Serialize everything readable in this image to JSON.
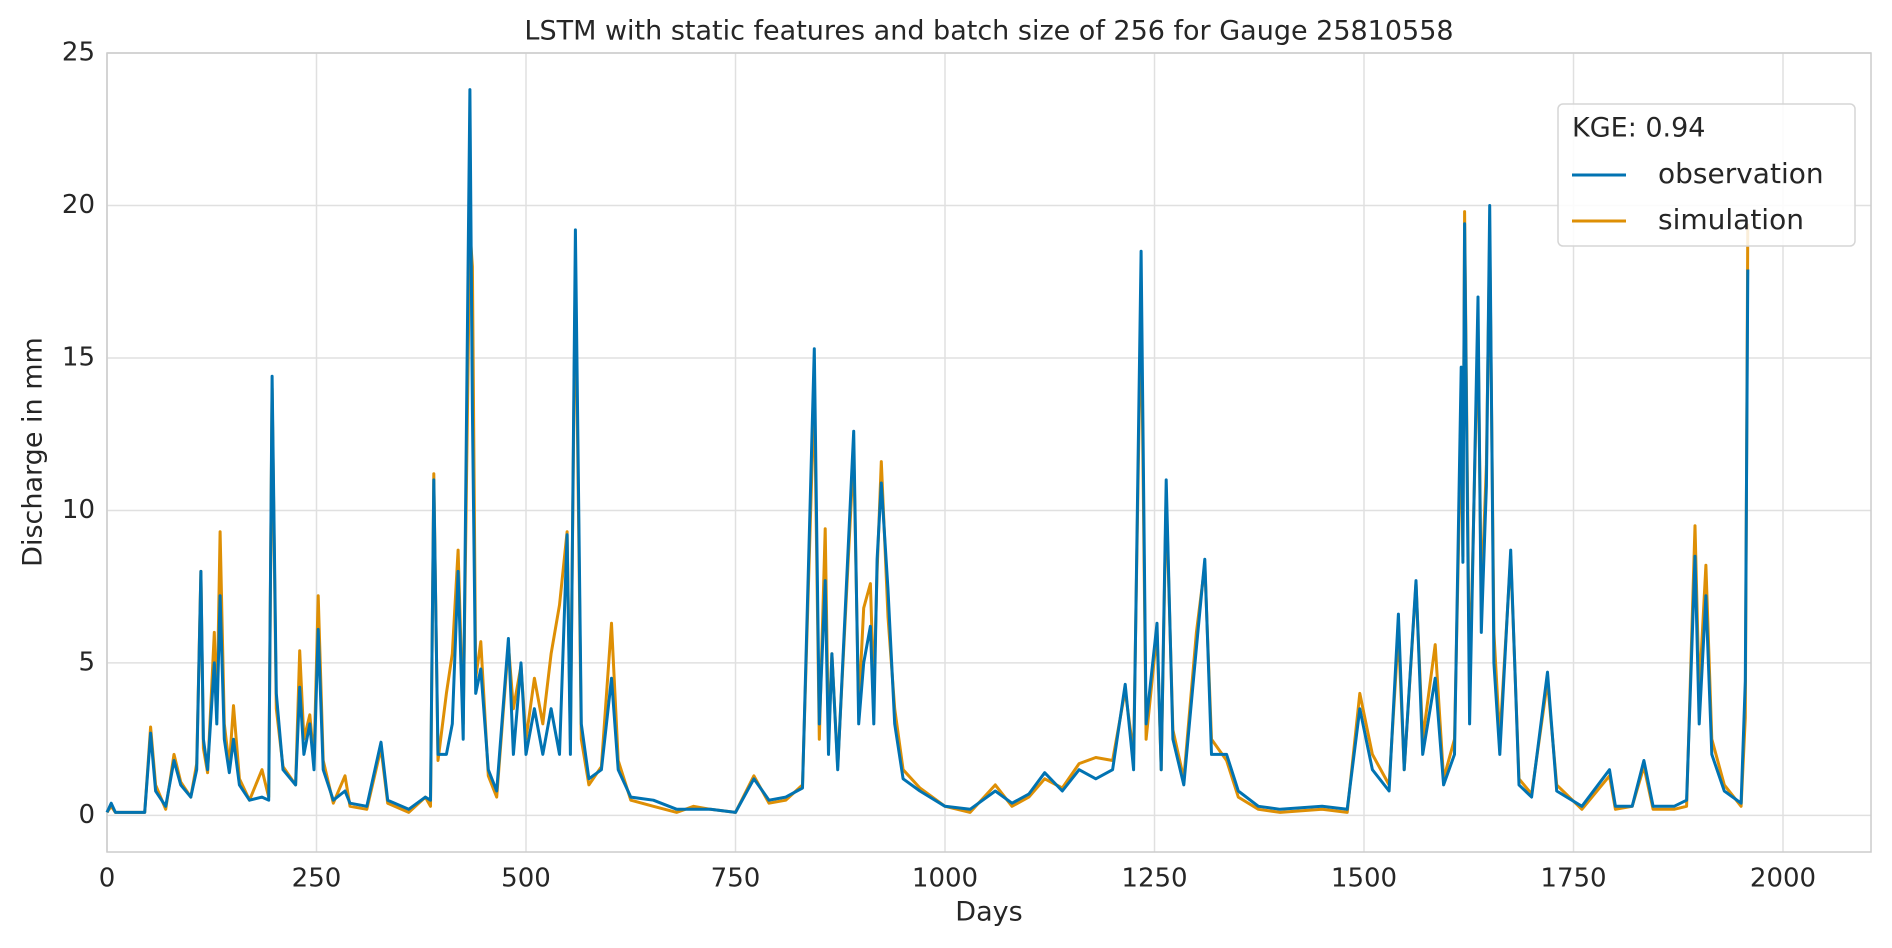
{
  "chart_data": {
    "type": "line",
    "title": "LSTM with static features and batch size of 256 for Gauge 25810558",
    "x_label": "Days",
    "y_label": "Discharge in mm",
    "legend_title": "KGE: 0.94",
    "legend": "upper right",
    "grid": true,
    "xlim": [
      0,
      2105
    ],
    "xticks": [
      0,
      250,
      500,
      750,
      1000,
      1250,
      1500,
      1750,
      2000
    ],
    "ylim": [
      -1.2,
      25
    ],
    "yticks": [
      0,
      5,
      10,
      15,
      20,
      25
    ],
    "x": [
      0,
      5,
      10,
      30,
      45,
      52,
      58,
      70,
      80,
      88,
      100,
      107,
      112,
      115,
      120,
      128,
      131,
      135,
      140,
      146,
      151,
      158,
      170,
      185,
      193,
      197,
      202,
      210,
      225,
      230,
      235,
      242,
      247,
      252,
      258,
      270,
      284,
      290,
      310,
      327,
      335,
      360,
      380,
      386,
      390,
      395,
      405,
      412,
      419,
      425,
      433,
      436,
      440,
      446,
      455,
      465,
      479,
      485,
      494,
      500,
      510,
      520,
      530,
      540,
      549,
      553,
      559,
      566,
      575,
      590,
      602,
      610,
      625,
      652,
      680,
      700,
      720,
      750,
      772,
      790,
      810,
      830,
      844,
      850,
      857,
      861,
      865,
      872,
      891,
      897,
      903,
      911,
      915,
      919,
      924,
      932,
      940,
      950,
      970,
      1000,
      1030,
      1060,
      1080,
      1100,
      1119,
      1140,
      1160,
      1180,
      1200,
      1215,
      1225,
      1234,
      1240,
      1253,
      1258,
      1264,
      1272,
      1285,
      1300,
      1310,
      1318,
      1336,
      1350,
      1374,
      1400,
      1450,
      1480,
      1495,
      1510,
      1530,
      1541,
      1548,
      1562,
      1570,
      1585,
      1595,
      1608,
      1616,
      1618,
      1620,
      1626,
      1636,
      1640,
      1646,
      1650,
      1655,
      1662,
      1675,
      1685,
      1700,
      1719,
      1730,
      1760,
      1793,
      1800,
      1820,
      1834,
      1845,
      1870,
      1885,
      1895,
      1900,
      1908,
      1915,
      1930,
      1950,
      1955,
      1958
    ],
    "series": [
      {
        "name": "observation",
        "color": "#0173b2",
        "values": [
          0.1,
          0.4,
          0.1,
          0.1,
          0.1,
          2.7,
          0.8,
          0.3,
          1.8,
          1.0,
          0.6,
          1.5,
          8.0,
          2.5,
          1.5,
          5.0,
          3.0,
          7.2,
          2.5,
          1.4,
          2.5,
          1.0,
          0.5,
          0.6,
          0.5,
          14.4,
          4.0,
          1.5,
          1.0,
          4.2,
          2.0,
          3.0,
          1.5,
          6.1,
          1.5,
          0.5,
          0.8,
          0.4,
          0.3,
          2.4,
          0.5,
          0.2,
          0.6,
          0.5,
          11.0,
          2.0,
          2.0,
          3.0,
          8.0,
          2.5,
          23.8,
          13.3,
          4.0,
          4.8,
          1.5,
          0.8,
          5.8,
          2.0,
          5.0,
          2.0,
          3.5,
          2.0,
          3.5,
          2.0,
          9.2,
          2.0,
          19.2,
          3.0,
          1.2,
          1.5,
          4.5,
          1.5,
          0.6,
          0.5,
          0.2,
          0.2,
          0.2,
          0.1,
          1.2,
          0.5,
          0.6,
          0.9,
          15.3,
          3.0,
          7.7,
          2.0,
          5.3,
          1.5,
          12.6,
          3.0,
          5.0,
          6.2,
          3.0,
          8.4,
          10.9,
          7.4,
          3.0,
          1.2,
          0.8,
          0.3,
          0.2,
          0.8,
          0.4,
          0.7,
          1.4,
          0.8,
          1.5,
          1.2,
          1.5,
          4.3,
          1.5,
          18.5,
          3.0,
          6.3,
          1.5,
          11.0,
          2.5,
          1.0,
          5.5,
          8.4,
          2.0,
          2.0,
          0.8,
          0.3,
          0.2,
          0.3,
          0.2,
          3.5,
          1.5,
          0.8,
          6.6,
          1.5,
          7.7,
          2.0,
          4.5,
          1.0,
          2.0,
          14.7,
          8.3,
          19.4,
          3.0,
          17.0,
          6.0,
          10.8,
          20.0,
          5.0,
          2.0,
          8.7,
          1.0,
          0.6,
          4.7,
          0.8,
          0.3,
          1.5,
          0.3,
          0.3,
          1.8,
          0.3,
          0.3,
          0.5,
          8.5,
          3.0,
          7.2,
          2.0,
          0.8,
          0.4,
          4.4,
          17.9
        ]
      },
      {
        "name": "simulation",
        "color": "#de8f05",
        "values": [
          0.1,
          0.3,
          0.1,
          0.1,
          0.1,
          2.9,
          1.0,
          0.2,
          2.0,
          1.1,
          0.6,
          1.7,
          8.0,
          2.2,
          1.4,
          6.0,
          3.2,
          9.3,
          3.0,
          1.6,
          3.6,
          1.2,
          0.5,
          1.5,
          0.6,
          14.0,
          3.5,
          1.6,
          1.0,
          5.4,
          2.5,
          3.3,
          1.8,
          7.2,
          1.8,
          0.4,
          1.3,
          0.3,
          0.2,
          2.2,
          0.4,
          0.1,
          0.6,
          0.3,
          11.2,
          1.8,
          4.0,
          5.3,
          8.7,
          3.0,
          19.2,
          18.0,
          4.5,
          5.7,
          1.3,
          0.6,
          5.6,
          3.5,
          4.9,
          2.5,
          4.5,
          3.0,
          5.3,
          6.9,
          9.3,
          2.5,
          18.0,
          2.5,
          1.0,
          1.6,
          6.3,
          1.8,
          0.5,
          0.3,
          0.1,
          0.3,
          0.2,
          0.1,
          1.3,
          0.4,
          0.5,
          1.0,
          14.0,
          2.5,
          9.4,
          2.5,
          5.3,
          1.6,
          11.9,
          3.5,
          6.8,
          7.6,
          4.0,
          8.0,
          11.6,
          6.5,
          3.5,
          1.5,
          0.9,
          0.3,
          0.1,
          1.0,
          0.3,
          0.6,
          1.2,
          0.9,
          1.7,
          1.9,
          1.8,
          4.1,
          2.0,
          17.0,
          2.5,
          6.0,
          1.5,
          10.5,
          2.8,
          1.2,
          6.0,
          8.2,
          2.5,
          1.8,
          0.6,
          0.2,
          0.1,
          0.2,
          0.1,
          4.0,
          2.0,
          1.0,
          6.0,
          1.5,
          7.6,
          2.5,
          5.6,
          1.2,
          2.5,
          13.0,
          8.5,
          19.8,
          4.0,
          16.0,
          7.0,
          11.5,
          19.0,
          6.0,
          2.5,
          8.5,
          1.2,
          0.7,
          4.4,
          1.0,
          0.2,
          1.3,
          0.2,
          0.3,
          1.6,
          0.2,
          0.2,
          0.3,
          9.5,
          4.0,
          8.2,
          2.5,
          1.0,
          0.3,
          3.2,
          19.4
        ]
      }
    ]
  }
}
